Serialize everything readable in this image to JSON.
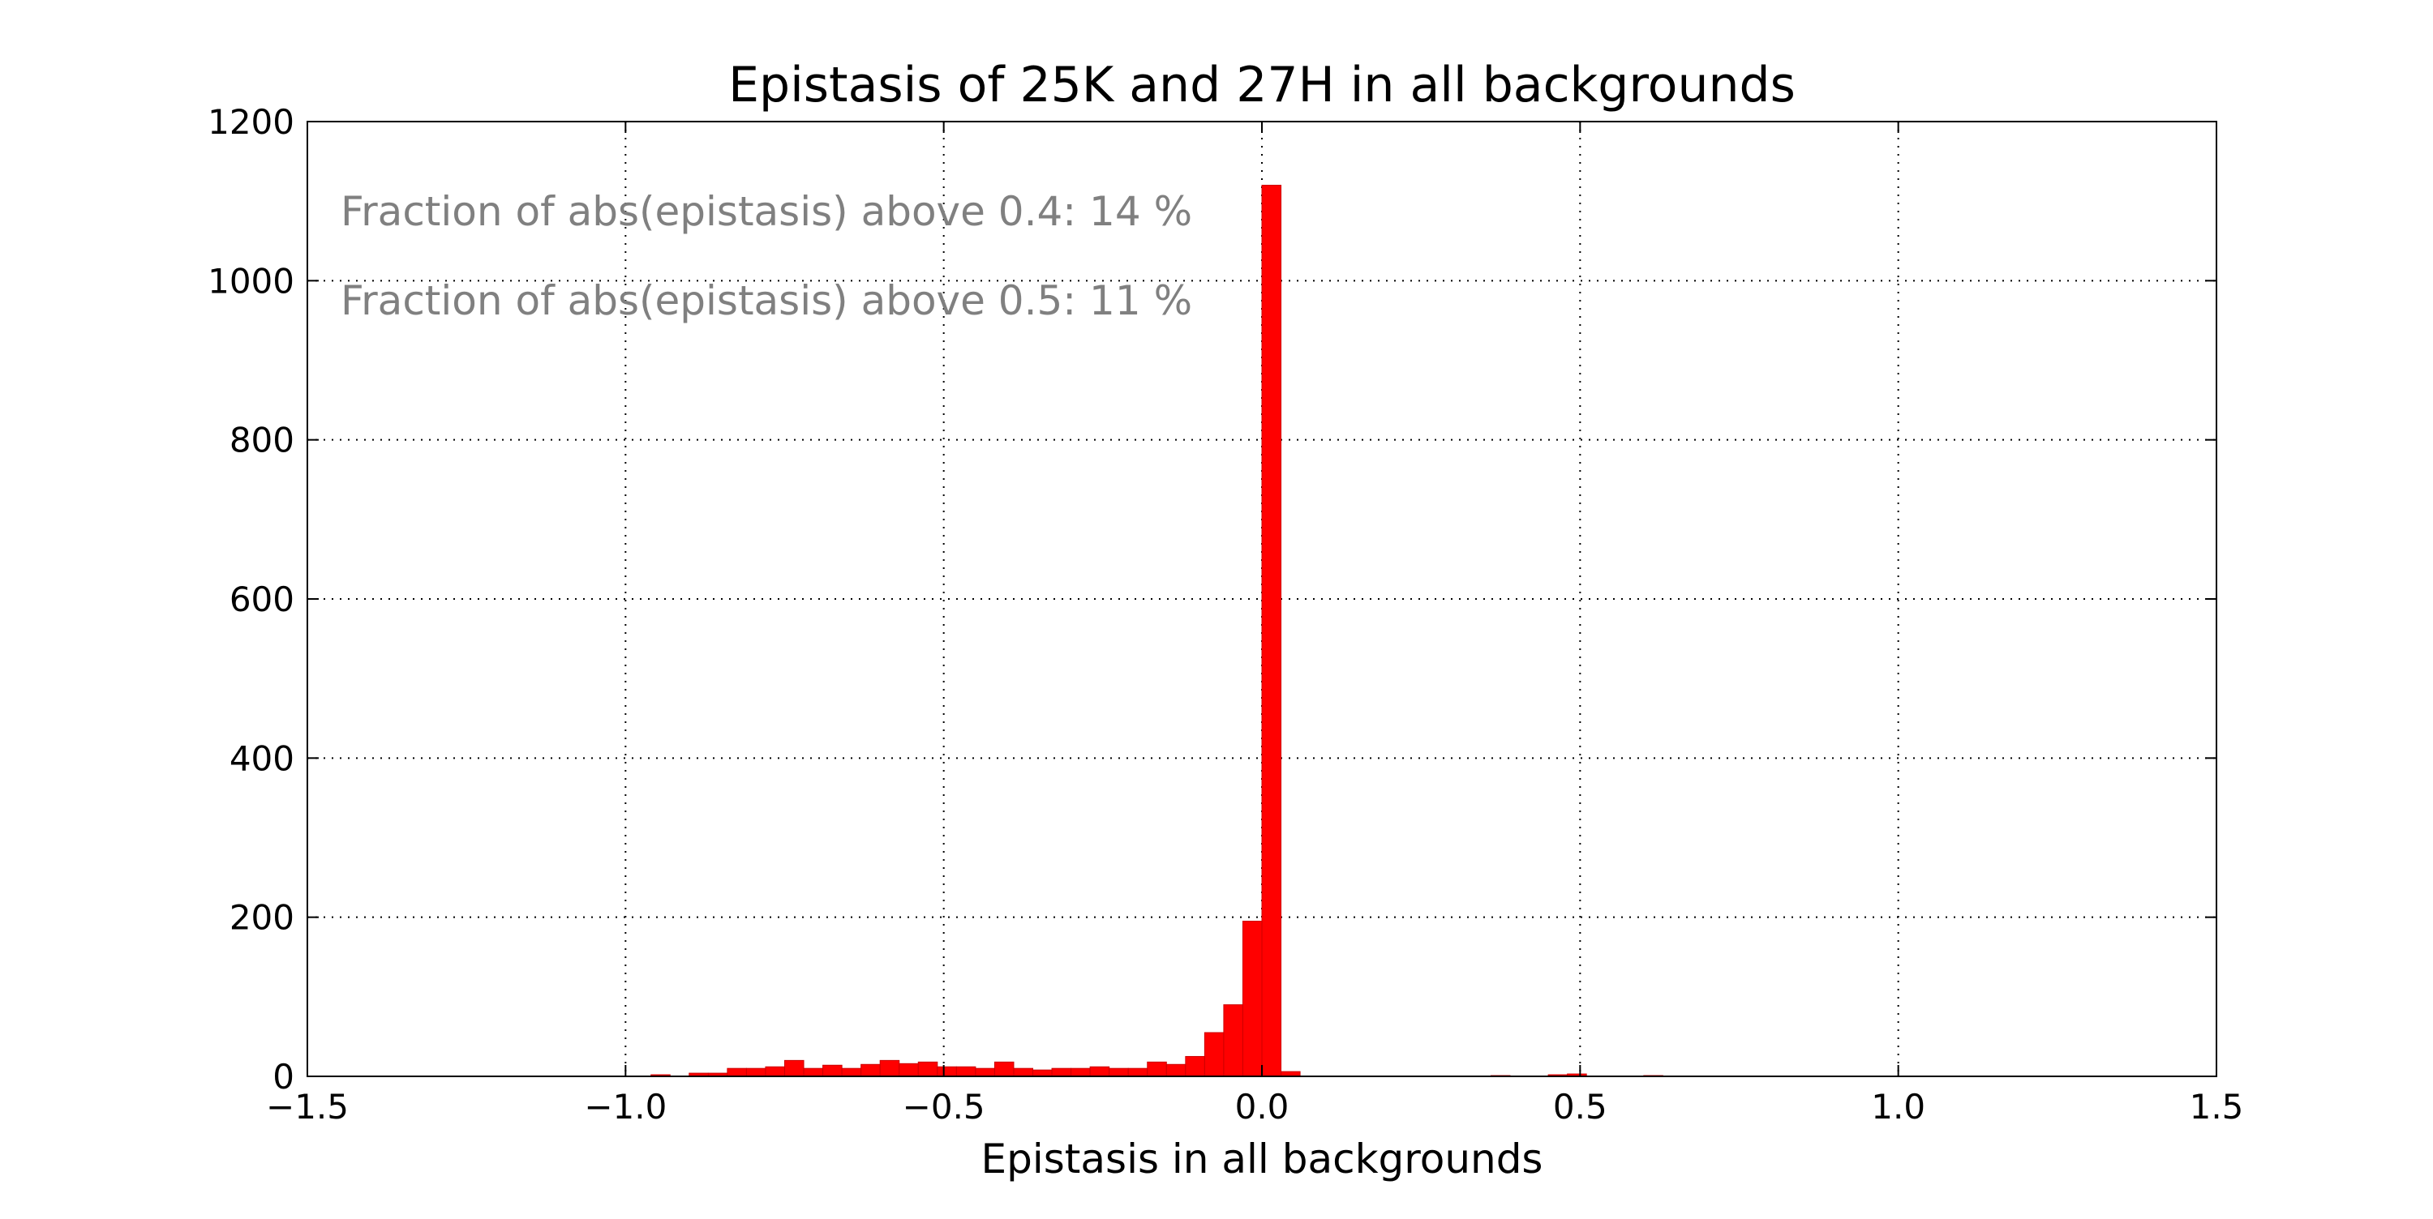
{
  "chart_data": {
    "type": "bar",
    "title": "Epistasis of 25K and 27H in all backgrounds",
    "xlabel": "Epistasis in all backgrounds",
    "ylabel": "",
    "xlim": [
      -1.5,
      1.5
    ],
    "ylim": [
      0,
      1200
    ],
    "xticks": [
      -1.5,
      -1.0,
      -0.5,
      0.0,
      0.5,
      1.0,
      1.5
    ],
    "xtick_labels": [
      "−1.5",
      "−1.0",
      "−0.5",
      "0.0",
      "0.5",
      "1.0",
      "1.5"
    ],
    "yticks": [
      0,
      200,
      400,
      600,
      800,
      1000,
      1200
    ],
    "ytick_labels": [
      "0",
      "200",
      "400",
      "600",
      "800",
      "1000",
      "1200"
    ],
    "grid": true,
    "legend": "none",
    "bar_color": "#ff0000",
    "annotation_color": "#808080",
    "bin_width": 0.03,
    "bin_lefts": [
      -0.96,
      -0.9,
      -0.87,
      -0.84,
      -0.81,
      -0.78,
      -0.75,
      -0.72,
      -0.69,
      -0.66,
      -0.63,
      -0.6,
      -0.57,
      -0.54,
      -0.51,
      -0.48,
      -0.45,
      -0.42,
      -0.39,
      -0.36,
      -0.33,
      -0.3,
      -0.27,
      -0.24,
      -0.21,
      -0.18,
      -0.15,
      -0.12,
      -0.09,
      -0.06,
      -0.03,
      0.0,
      0.03,
      0.36,
      0.45,
      0.48,
      0.6
    ],
    "values": [
      2,
      4,
      4,
      10,
      10,
      12,
      20,
      10,
      14,
      10,
      15,
      20,
      16,
      18,
      12,
      12,
      10,
      18,
      10,
      8,
      10,
      10,
      12,
      10,
      10,
      18,
      15,
      25,
      55,
      90,
      195,
      1120,
      6,
      1,
      2,
      3,
      1
    ],
    "annotations": [
      "Fraction of abs(epistasis) above 0.4: 14 %",
      "Fraction of abs(epistasis) above 0.5: 11 %"
    ]
  }
}
